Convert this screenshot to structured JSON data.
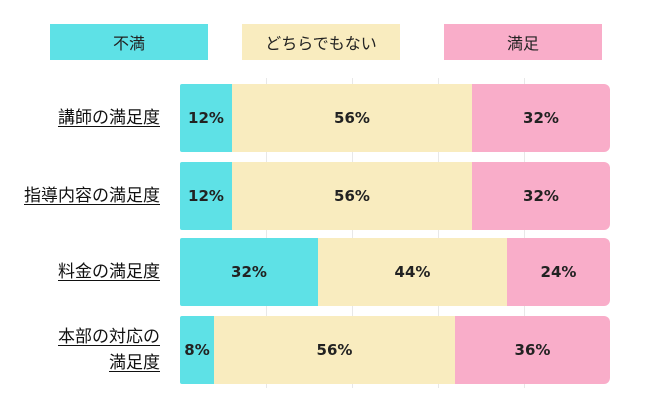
{
  "chart_data": {
    "type": "bar",
    "orientation": "horizontal",
    "stacked": true,
    "legend_position": "top",
    "legend": [
      "不満",
      "どちらでもない",
      "満足"
    ],
    "categories": [
      [
        "講師の満足度"
      ],
      [
        "指導内容の満足度"
      ],
      [
        "料金の満足度"
      ],
      [
        "本部の対応の",
        "満足度"
      ]
    ],
    "series": [
      {
        "name": "不満",
        "color": "#5ee1e6",
        "values": [
          12,
          12,
          32,
          8
        ]
      },
      {
        "name": "どちらでもない",
        "color": "#f9ecbf",
        "values": [
          56,
          56,
          44,
          56
        ]
      },
      {
        "name": "満足",
        "color": "#f9adc9",
        "values": [
          32,
          32,
          24,
          36
        ]
      }
    ],
    "data_labels": [
      [
        "12%",
        "56%",
        "32%"
      ],
      [
        "12%",
        "56%",
        "32%"
      ],
      [
        "32%",
        "44%",
        "24%"
      ],
      [
        "8%",
        "56%",
        "36%"
      ]
    ],
    "xlim": [
      0,
      100
    ],
    "unit": "%"
  }
}
